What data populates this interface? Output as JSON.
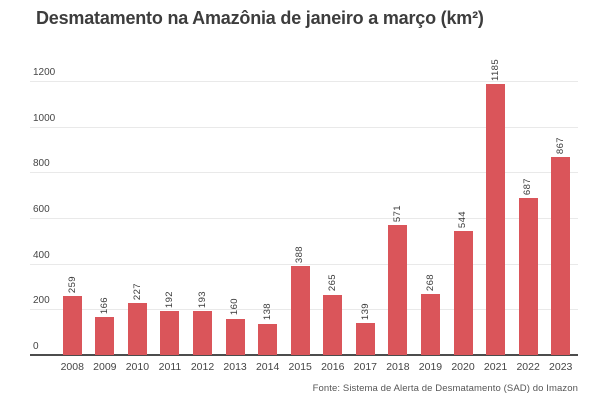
{
  "chart_data": {
    "type": "bar",
    "title": "Desmatamento na Amazônia de janeiro a março (km²)",
    "categories": [
      "2008",
      "2009",
      "2010",
      "2011",
      "2012",
      "2013",
      "2014",
      "2015",
      "2016",
      "2017",
      "2018",
      "2019",
      "2020",
      "2021",
      "2022",
      "2023"
    ],
    "values": [
      259,
      166,
      227,
      192,
      193,
      160,
      138,
      388,
      265,
      139,
      571,
      268,
      544,
      1185,
      687,
      867
    ],
    "xlabel": "",
    "ylabel": "",
    "ylim": [
      0,
      1200
    ],
    "yticks": [
      0,
      200,
      400,
      600,
      800,
      1000,
      1200
    ],
    "grid": true,
    "legend_position": "none",
    "value_label_style": "rotated-90-above-bar",
    "source": "Fonte: Sistema de Alerta de Desmatamento (SAD) do Imazon"
  },
  "colors": {
    "bar": "#da555a",
    "grid": "#e9e9e9",
    "axis": "#4c4c4c",
    "title_text": "#3d3d3d",
    "tick_text": "#454545",
    "value_text": "#3a3a3a",
    "source_text": "#565656",
    "background": "#ffffff"
  }
}
